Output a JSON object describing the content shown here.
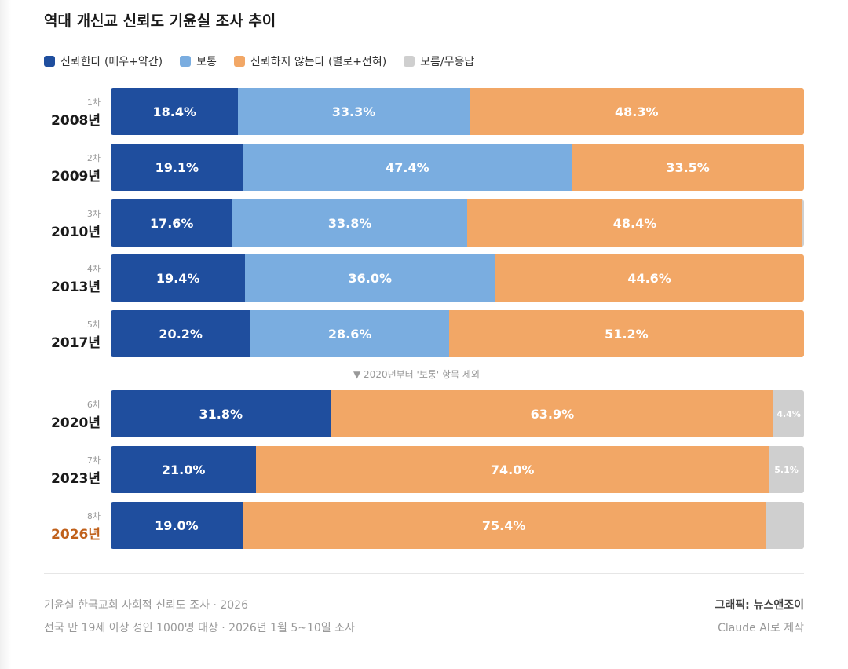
{
  "title": "역대 개신교 신뢰도 기윤실 조사 추이",
  "legend": [
    {
      "label": "신뢰한다 (매우+약간)",
      "color": "#1f4e9e"
    },
    {
      "label": "보통",
      "color": "#7aade0"
    },
    {
      "label": "신뢰하지 않는다 (별로+전혀)",
      "color": "#f2a766"
    },
    {
      "label": "모름/무응답",
      "color": "#cfcfcf"
    }
  ],
  "note": "▼ 2020년부터 '보통' 항목 제외",
  "chart_data": {
    "type": "bar",
    "orientation": "horizontal-stacked-100",
    "title": "역대 개신교 신뢰도 기윤실 조사 추이",
    "series_names": [
      "신뢰한다 (매우+약간)",
      "보통",
      "신뢰하지 않는다 (별로+전혀)",
      "모름/무응답"
    ],
    "rows": [
      {
        "wave": "1차",
        "year": "2008년",
        "values": [
          18.4,
          33.3,
          48.3,
          null
        ],
        "labels": [
          "18.4%",
          "33.3%",
          "48.3%",
          ""
        ]
      },
      {
        "wave": "2차",
        "year": "2009년",
        "values": [
          19.1,
          47.4,
          33.5,
          null
        ],
        "labels": [
          "19.1%",
          "47.4%",
          "33.5%",
          ""
        ]
      },
      {
        "wave": "3차",
        "year": "2010년",
        "values": [
          17.6,
          33.8,
          48.4,
          0.2
        ],
        "labels": [
          "17.6%",
          "33.8%",
          "48.4%",
          ""
        ]
      },
      {
        "wave": "4차",
        "year": "2013년",
        "values": [
          19.4,
          36.0,
          44.6,
          null
        ],
        "labels": [
          "19.4%",
          "36.0%",
          "44.6%",
          ""
        ]
      },
      {
        "wave": "5차",
        "year": "2017년",
        "values": [
          20.2,
          28.6,
          51.2,
          null
        ],
        "labels": [
          "20.2%",
          "28.6%",
          "51.2%",
          ""
        ]
      },
      {
        "wave": "6차",
        "year": "2020년",
        "values": [
          31.8,
          null,
          63.9,
          4.4
        ],
        "labels": [
          "31.8%",
          "",
          "63.9%",
          "4.4%"
        ]
      },
      {
        "wave": "7차",
        "year": "2023년",
        "values": [
          21.0,
          null,
          74.0,
          5.1
        ],
        "labels": [
          "21.0%",
          "",
          "74.0%",
          "5.1%"
        ]
      },
      {
        "wave": "8차",
        "year": "2026년",
        "values": [
          19.0,
          null,
          75.4,
          5.6
        ],
        "labels": [
          "19.0%",
          "",
          "75.4%",
          ""
        ],
        "highlight": "#c0601a"
      }
    ],
    "xlim": [
      0,
      100
    ],
    "grid": false,
    "legend_position": "top-left"
  },
  "footer": {
    "source": "기윤실 한국교회 사회적 신뢰도 조사 · 2026",
    "method": "전국 만 19세 이상 성인 1000명 대상 · 2026년 1월 5~10일 조사",
    "credit": "그래픽: 뉴스앤조이",
    "made_with": "Claude AI로 제작"
  }
}
